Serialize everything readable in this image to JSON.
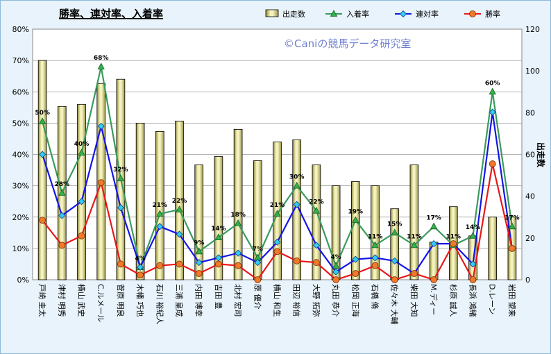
{
  "chart_data": {
    "type": "bar",
    "title": "勝率、連対率、入着率",
    "watermark": "©Caniの競馬データ研究室",
    "categories": [
      "戸崎 圭太",
      "津村 明秀",
      "横山 武史",
      "C.ルメール",
      "菅原 明良",
      "木幡 巧也",
      "石川 裕紀人",
      "三浦 皇成",
      "内田 博幸",
      "吉田 豊",
      "北村 宏司",
      "原 優介",
      "横山 和生",
      "田辺 裕信",
      "大野 拓弥",
      "丸田 恭介",
      "松岡 正海",
      "石橋 脩",
      "佐々木 大輔",
      "柴田 大知",
      "M.ディー",
      "杉原 誠人",
      "長浜 鴻緒",
      "D.レーン",
      "岩田 望来"
    ],
    "y_left": {
      "min": 0,
      "max": 80,
      "step": 10,
      "tick_labels": [
        "0%",
        "10%",
        "20%",
        "30%",
        "40%",
        "50%",
        "60%",
        "70%",
        "80%"
      ]
    },
    "y_right": {
      "min": 0,
      "max": 120,
      "step": 20,
      "label": "出走数",
      "tick_labels": [
        "0",
        "20",
        "40",
        "60",
        "80",
        "100",
        "120"
      ]
    },
    "series": [
      {
        "name": "出走数",
        "kind": "bar",
        "axis": "right",
        "color": "#e8e29a",
        "values": [
          105,
          83,
          84,
          94,
          96,
          75,
          71,
          76,
          55,
          59,
          72,
          57,
          66,
          67,
          55,
          45,
          47,
          45,
          34,
          55,
          18,
          35,
          21,
          30,
          30
        ]
      },
      {
        "name": "入着率",
        "kind": "line",
        "axis": "left",
        "color": "#3a9a5b",
        "values": [
          50.5,
          27.7,
          40.5,
          68.0,
          32.3,
          4.0,
          21.0,
          22.4,
          9.0,
          13.5,
          18.0,
          7.0,
          21.0,
          30.0,
          22.0,
          4.4,
          19.0,
          11.0,
          15.0,
          11.0,
          17.0,
          11.0,
          14.0,
          60.0,
          17.0
        ],
        "data_labels": [
          "50%",
          "28%",
          "40%",
          "68%",
          "32%",
          "4%",
          "21%",
          "22%",
          "9%",
          "14%",
          "18%",
          "7%",
          "21%",
          "30%",
          "22%",
          "4%",
          "19%",
          "11%",
          "15%",
          "11%",
          "17%",
          "11%",
          "14%",
          "60%",
          "17%"
        ]
      },
      {
        "name": "連対率",
        "kind": "line",
        "axis": "left",
        "color": "#1414e6",
        "values": [
          40.0,
          20.5,
          25.0,
          49.0,
          23.0,
          4.0,
          17.0,
          14.5,
          5.5,
          7.0,
          8.5,
          5.5,
          12.0,
          24.0,
          11.0,
          2.5,
          6.5,
          7.0,
          6.0,
          2.0,
          11.5,
          11.5,
          5.0,
          53.5,
          10.0
        ]
      },
      {
        "name": "勝率",
        "kind": "line",
        "axis": "left",
        "color": "#e81818",
        "values": [
          19.0,
          11.0,
          14.0,
          31.0,
          5.0,
          1.5,
          4.5,
          5.0,
          2.0,
          5.0,
          4.5,
          0.0,
          9.0,
          6.0,
          5.5,
          0.0,
          2.0,
          4.5,
          0.0,
          2.0,
          0.0,
          11.5,
          0.0,
          37.0,
          10.0
        ]
      }
    ],
    "legend_position": "top-right",
    "grid": "horizontal"
  }
}
